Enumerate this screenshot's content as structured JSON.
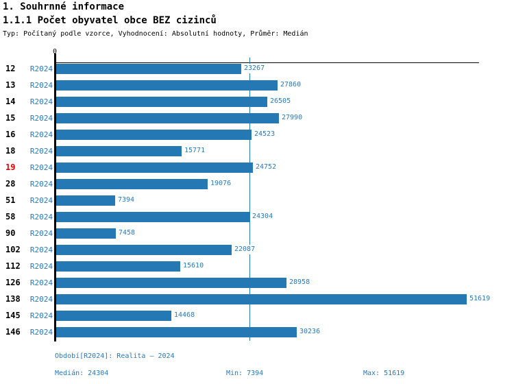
{
  "header": {
    "title": "1. Souhrnné informace",
    "subtitle": "1.1.1 Počet obyvatel obce BEZ cizinců",
    "meta": "Typ: Počítaný podle vzorce, Vyhodnocení: Absolutní hodnoty, Průměr: Medián"
  },
  "chart_data": {
    "type": "bar",
    "orientation": "horizontal",
    "title": "1.1.1 Počet obyvatel obce BEZ cizinců",
    "categories": [
      "12",
      "13",
      "14",
      "15",
      "16",
      "18",
      "19",
      "28",
      "51",
      "58",
      "90",
      "102",
      "112",
      "126",
      "138",
      "145",
      "146"
    ],
    "series": [
      {
        "name": "R2024",
        "values": [
          23267,
          27860,
          26505,
          27990,
          24523,
          15771,
          24752,
          19076,
          7394,
          24304,
          7458,
          22087,
          15610,
          28958,
          51619,
          14468,
          30236
        ]
      }
    ],
    "series_row_label": "R2024",
    "highlighted_category": "19",
    "axis": {
      "zero_label": "0",
      "xmin": 0
    },
    "median_reference_line": 24304,
    "stats": {
      "median": 24304,
      "min": 7394,
      "max": 51619
    },
    "colors": {
      "bar": "#2478b4",
      "value_label": "#2878b8",
      "series_label": "#2878b8",
      "category_label": "#000000",
      "highlighted_category_label": "#dd0000",
      "median_line": "#2878b8",
      "axis": "#000000"
    },
    "legend_position": "none",
    "grid": false
  },
  "footer": {
    "period": "Období[R2024]: Realita – 2024",
    "median": "Medián: 24304",
    "min": "Min: 7394",
    "max": "Max: 51619"
  }
}
